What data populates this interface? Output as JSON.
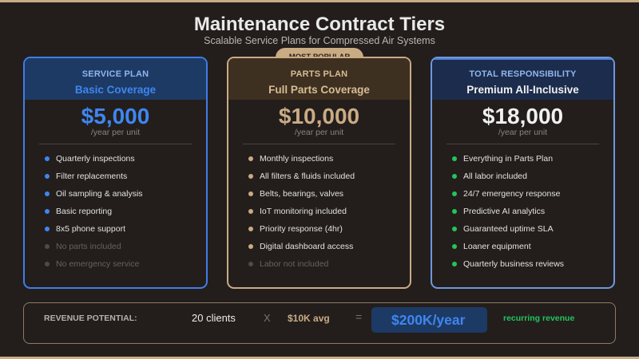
{
  "title": "Maintenance Contract Tiers",
  "subtitle": "Scalable Service Plans for Compressed Air Systems",
  "badge": "MOST POPULAR",
  "colors": {
    "background": "#231e1c",
    "service_accent": "#3f86f0",
    "parts_accent": "#c9ab84",
    "total_accent": "#22c55e"
  },
  "plans": [
    {
      "plan": "SERVICE PLAN",
      "tier": "Basic Coverage",
      "price": "$5,000",
      "per": "/year per unit",
      "features": [
        "Quarterly inspections",
        "Filter replacements",
        "Oil sampling & analysis",
        "Basic reporting",
        "8x5 phone support",
        "No parts included",
        "No emergency service"
      ]
    },
    {
      "plan": "PARTS PLAN",
      "tier": "Full Parts Coverage",
      "price": "$10,000",
      "per": "/year per unit",
      "features": [
        "Monthly inspections",
        "All filters & fluids included",
        "Belts, bearings, valves",
        "IoT monitoring included",
        "Priority response (4hr)",
        "Digital dashboard access",
        "Labor not included"
      ]
    },
    {
      "plan": "TOTAL RESPONSIBILITY",
      "tier": "Premium All-Inclusive",
      "price": "$18,000",
      "per": "/year per unit",
      "features": [
        "Everything in Parts Plan",
        "All labor included",
        "24/7 emergency response",
        "Predictive AI analytics",
        "Guaranteed uptime SLA",
        "Loaner equipment",
        "Quarterly business reviews"
      ]
    }
  ],
  "revenue": {
    "label": "REVENUE POTENTIAL:",
    "clients": "20 clients",
    "times": "X",
    "avg": "$10K avg",
    "equals": "=",
    "total": "$200K/year",
    "recurring": "recurring revenue"
  }
}
